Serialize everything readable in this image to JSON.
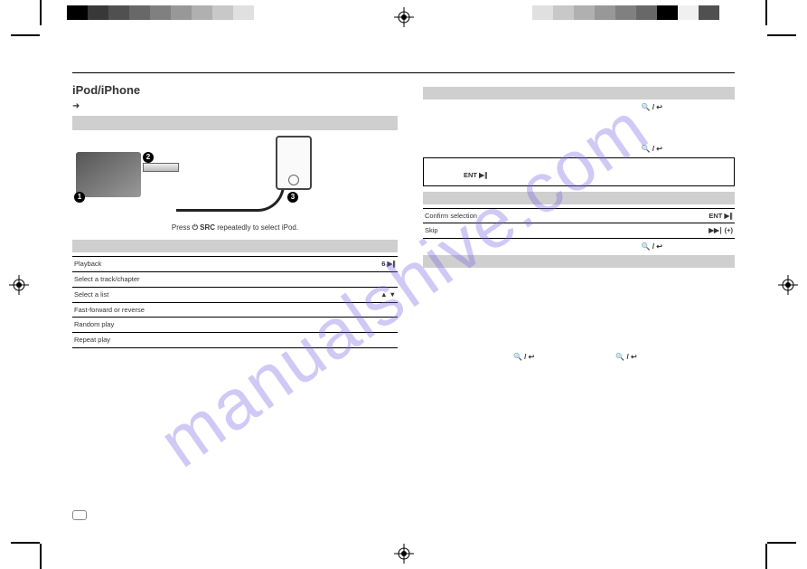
{
  "watermark": "manualshive.com",
  "colorbars": {
    "left_colors": [
      "#000000",
      "#383838",
      "#505050",
      "#686868",
      "#808080",
      "#989898",
      "#b0b0b0",
      "#c8c8c8",
      "#e0e0e0",
      "#ffffff"
    ],
    "right_colors": [
      "#ffffff",
      "#e0e0e0",
      "#c8c8c8",
      "#b0b0b0",
      "#989898",
      "#808080",
      "#686868",
      "#000000",
      "#f0f0f0",
      "#505050"
    ]
  },
  "left": {
    "title": "iPod/iPhone",
    "subline_arrow": "➜",
    "src_prefix": "Press ",
    "src_symbol": "⏻ SRC",
    "src_suffix": " repeatedly to select iPod.",
    "badges": {
      "n1": "1",
      "n2": "2",
      "n3": "3"
    },
    "table": [
      {
        "l": "Playback",
        "r": "6 ▶∥"
      },
      {
        "l": "Select a track/chapter",
        "r": ""
      },
      {
        "l": "Select a list",
        "r": "▲  ▼"
      },
      {
        "l": "Fast-forward or reverse",
        "r": ""
      },
      {
        "l": "Random play",
        "r": ""
      },
      {
        "l": "Repeat play",
        "r": ""
      }
    ]
  },
  "right": {
    "line1_glyph": "🔍 / ↩",
    "line2_glyph": "🔍 / ↩",
    "box_ent": "ENT ▶∥",
    "tbl2": [
      {
        "l": "Confirm selection",
        "r": "ENT ▶∥"
      },
      {
        "l": "Skip",
        "r": "▶▶∣ (+)"
      }
    ],
    "line3_glyph": "🔍 / ↩",
    "bottom_glyph1": "🔍 / ↩",
    "bottom_glyph2": "🔍 / ↩"
  }
}
